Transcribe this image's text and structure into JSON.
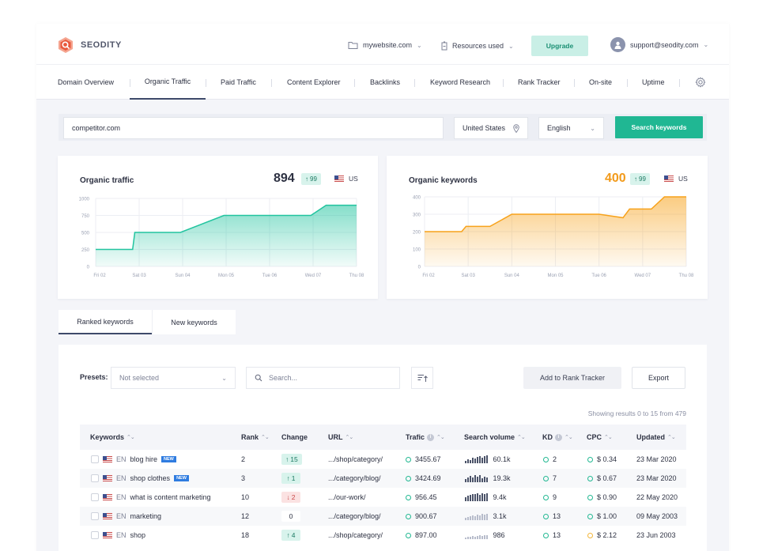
{
  "brand": {
    "name": "SEODITY",
    "color": "#e8593c"
  },
  "topbar": {
    "website": "mywebsite.com",
    "resources": "Resources used",
    "upgrade": "Upgrade",
    "user": "support@seodity.com"
  },
  "nav": [
    {
      "label": "Domain Overview"
    },
    {
      "label": "Organic Traffic",
      "active": true
    },
    {
      "label": "Paid Traffic"
    },
    {
      "label": "Content Explorer"
    },
    {
      "label": "Backlinks"
    },
    {
      "label": "Keyword Research"
    },
    {
      "label": "Rank Tracker"
    },
    {
      "label": "On-site"
    },
    {
      "label": "Uptime"
    }
  ],
  "search": {
    "domain": "competitor.com",
    "country": "United States",
    "language": "English",
    "button": "Search keywords"
  },
  "traffic_card": {
    "title": "Organic traffic",
    "value": "894",
    "change": "99",
    "country": "US"
  },
  "keywords_card": {
    "title": "Organic keywords",
    "value": "400",
    "change": "99",
    "country": "US"
  },
  "chart_data": [
    {
      "type": "area",
      "categories": [
        "Fri 02",
        "Sat 03",
        "Sun 04",
        "Mon 05",
        "Tue 06",
        "Wed 07",
        "Thu 08"
      ],
      "x": [
        0,
        0.85,
        0.9,
        1.95,
        2.95,
        3.95,
        4.95,
        5.3,
        6
      ],
      "values": [
        250,
        250,
        500,
        500,
        750,
        750,
        750,
        900,
        900
      ],
      "yticks": [
        0,
        250,
        500,
        750,
        1000
      ],
      "ylim": [
        0,
        1000
      ],
      "color": "#22c49f",
      "grid": true
    },
    {
      "type": "area",
      "categories": [
        "Fri 02",
        "Sat 03",
        "Sun 04",
        "Mon 05",
        "Tue 06",
        "Wed 07",
        "Thu 08"
      ],
      "x": [
        0,
        0.85,
        0.95,
        1.5,
        2,
        3,
        4,
        4.55,
        4.7,
        5.2,
        5.5,
        6
      ],
      "values": [
        200,
        200,
        230,
        230,
        300,
        300,
        300,
        280,
        330,
        330,
        400,
        400
      ],
      "yticks": [
        0,
        100,
        200,
        300,
        400
      ],
      "ylim": [
        0,
        400
      ],
      "color": "#f7a21b",
      "grid": true
    }
  ],
  "tabs": [
    {
      "label": "Ranked keywords",
      "active": true
    },
    {
      "label": "New keywords"
    }
  ],
  "toolbar": {
    "presets_label": "Presets:",
    "presets_value": "Not selected",
    "search_placeholder": "Search...",
    "add_button": "Add to Rank Tracker",
    "export_button": "Export",
    "results": "Showing results 0 to 15 from 479"
  },
  "columns": [
    "Keywords",
    "Rank",
    "Change",
    "URL",
    "Trafic",
    "Search volume",
    "KD",
    "CPC",
    "Updated"
  ],
  "rows": [
    {
      "keyword": "blog hire",
      "lang": "EN",
      "new": "NEW",
      "rank": "2",
      "change": "15",
      "dir": "up",
      "url": ".../shop/category/",
      "traffic": "3455.67",
      "volume": "60.1k",
      "kd": "2",
      "cpc": "$ 0.34",
      "cpc_color": "green",
      "updated": "23 Mar 2020",
      "bars": [
        3,
        5,
        4,
        7,
        6,
        8,
        9,
        7,
        9,
        10
      ],
      "light": false
    },
    {
      "keyword": "shop clothes",
      "lang": "EN",
      "new": "NEW",
      "rank": "3",
      "change": "1",
      "dir": "up",
      "url": ".../category/blog/",
      "traffic": "3424.69",
      "volume": "19.3k",
      "kd": "7",
      "cpc": "$ 0.67",
      "cpc_color": "green",
      "updated": "23 Mar 2020",
      "bars": [
        4,
        6,
        8,
        6,
        9,
        7,
        9,
        5,
        7,
        6
      ],
      "light": false
    },
    {
      "keyword": "what is content marketing",
      "lang": "EN",
      "new": "",
      "rank": "10",
      "change": "2",
      "dir": "down",
      "url": ".../our-work/",
      "traffic": "956.45",
      "volume": "9.4k",
      "kd": "9",
      "cpc": "$ 0.90",
      "cpc_color": "green",
      "updated": "22 May 2020",
      "bars": [
        5,
        7,
        8,
        9,
        9,
        10,
        8,
        10,
        9,
        10
      ],
      "light": false
    },
    {
      "keyword": "marketing",
      "lang": "EN",
      "new": "",
      "rank": "12",
      "change": "0",
      "dir": "flat",
      "url": ".../category/blog/",
      "traffic": "900.67",
      "volume": "3.1k",
      "kd": "13",
      "cpc": "$ 1.00",
      "cpc_color": "green",
      "updated": "09 May 2003",
      "bars": [
        3,
        4,
        5,
        6,
        5,
        7,
        6,
        8,
        7,
        8
      ],
      "light": true
    },
    {
      "keyword": "shop",
      "lang": "EN",
      "new": "",
      "rank": "18",
      "change": "4",
      "dir": "up",
      "url": ".../shop/category/",
      "traffic": "897.00",
      "volume": "986",
      "kd": "13",
      "cpc": "$ 2.12",
      "cpc_color": "yellow",
      "updated": "23 Jun 2003",
      "bars": [
        2,
        3,
        3,
        4,
        3,
        4,
        5,
        4,
        5,
        5
      ],
      "light": true
    }
  ]
}
